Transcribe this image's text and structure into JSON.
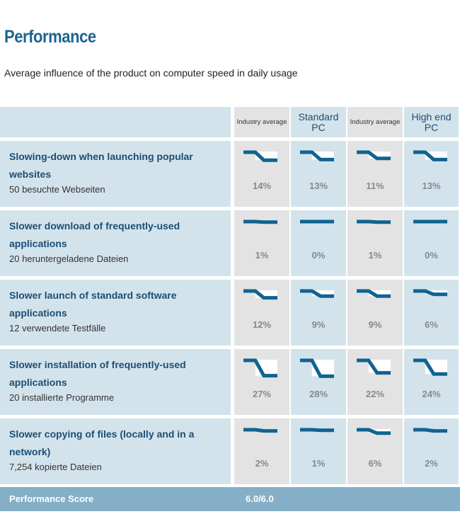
{
  "title": "Performance",
  "subtitle": "Average influence of the product on computer speed in daily usage",
  "headers": [
    "Industry average",
    "Standard PC",
    "Industry average",
    "High end PC"
  ],
  "colors": {
    "accent": "#1c6391",
    "line": "#0f6391"
  },
  "rows": [
    {
      "title": "Slowing-down when launching popular websites",
      "detail": "50 besuchte Webseiten",
      "values": [
        "14%",
        "13%",
        "11%",
        "13%"
      ],
      "nums": [
        14,
        13,
        11,
        13
      ]
    },
    {
      "title": "Slower download of frequently-used applications",
      "detail": "20 heruntergeladene Dateien",
      "values": [
        "1%",
        "0%",
        "1%",
        "0%"
      ],
      "nums": [
        1,
        0,
        1,
        0
      ]
    },
    {
      "title": "Slower launch of standard software applications",
      "detail": "12 verwendete Testfälle",
      "values": [
        "12%",
        "9%",
        "9%",
        "6%"
      ],
      "nums": [
        12,
        9,
        9,
        6
      ]
    },
    {
      "title": "Slower installation of frequently-used applications",
      "detail": "20 installierte Programme",
      "values": [
        "27%",
        "28%",
        "22%",
        "24%"
      ],
      "nums": [
        27,
        28,
        22,
        24
      ]
    },
    {
      "title": "Slower copying of files (locally and in a network)",
      "detail": "7,254 kopierte Dateien",
      "values": [
        "2%",
        "1%",
        "6%",
        "2%"
      ],
      "nums": [
        2,
        1,
        6,
        2
      ]
    }
  ],
  "score": {
    "label": "Performance Score",
    "value": "6.0/6.0"
  }
}
